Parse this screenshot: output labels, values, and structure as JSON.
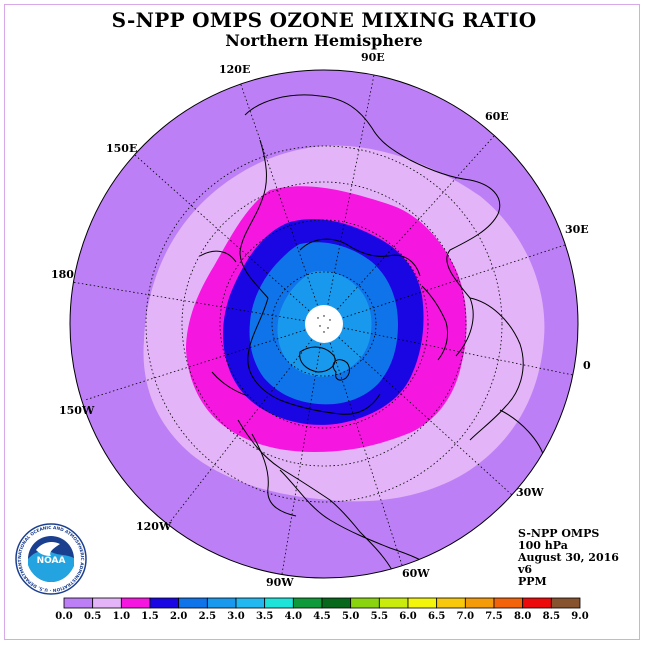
{
  "title": "S-NPP OMPS OZONE MIXING RATIO",
  "subtitle": "Northern Hemisphere",
  "longitude_labels": [
    "90E",
    "60E",
    "30E",
    "0",
    "30W",
    "60W",
    "90W",
    "120W",
    "150W",
    "180",
    "150E",
    "120E"
  ],
  "info": {
    "instrument": "S-NPP OMPS",
    "level": "100 hPa",
    "date": "August 30, 2016",
    "version": "v6",
    "units": "PPM"
  },
  "logo": {
    "text": "NOAA",
    "ring_text": "NATIONAL OCEANIC AND ATMOSPHERIC ADMINISTRATION · U.S. DEPARTMENT OF COMMERCE"
  },
  "colorbar": {
    "labels": [
      "0.0",
      "0.5",
      "1.0",
      "1.5",
      "2.0",
      "2.5",
      "3.0",
      "3.5",
      "4.0",
      "4.5",
      "5.0",
      "5.5",
      "6.0",
      "6.5",
      "7.0",
      "7.5",
      "8.0",
      "8.5",
      "9.0"
    ],
    "colors": [
      "#bd7ff5",
      "#e3b4f7",
      "#f516e0",
      "#1a05e3",
      "#0f73ea",
      "#1999ee",
      "#23b8ef",
      "#1de3d9",
      "#0e9a3a",
      "#07671a",
      "#8ad40f",
      "#c9ec0d",
      "#f3f50a",
      "#f7c80c",
      "#f49b0a",
      "#f3640a",
      "#ec0a0a",
      "#87522e"
    ]
  },
  "map_levels": [
    {
      "range": "0.0-0.5",
      "color": "#bd7ff5"
    },
    {
      "range": "0.5-1.0",
      "color": "#e3b4f7"
    },
    {
      "range": "1.0-1.5",
      "color": "#f516e0"
    },
    {
      "range": "1.5-2.0",
      "color": "#1a05e3"
    },
    {
      "range": "2.0-2.5",
      "color": "#0f73ea"
    },
    {
      "range": "2.5-3.0",
      "color": "#1999ee"
    }
  ]
}
